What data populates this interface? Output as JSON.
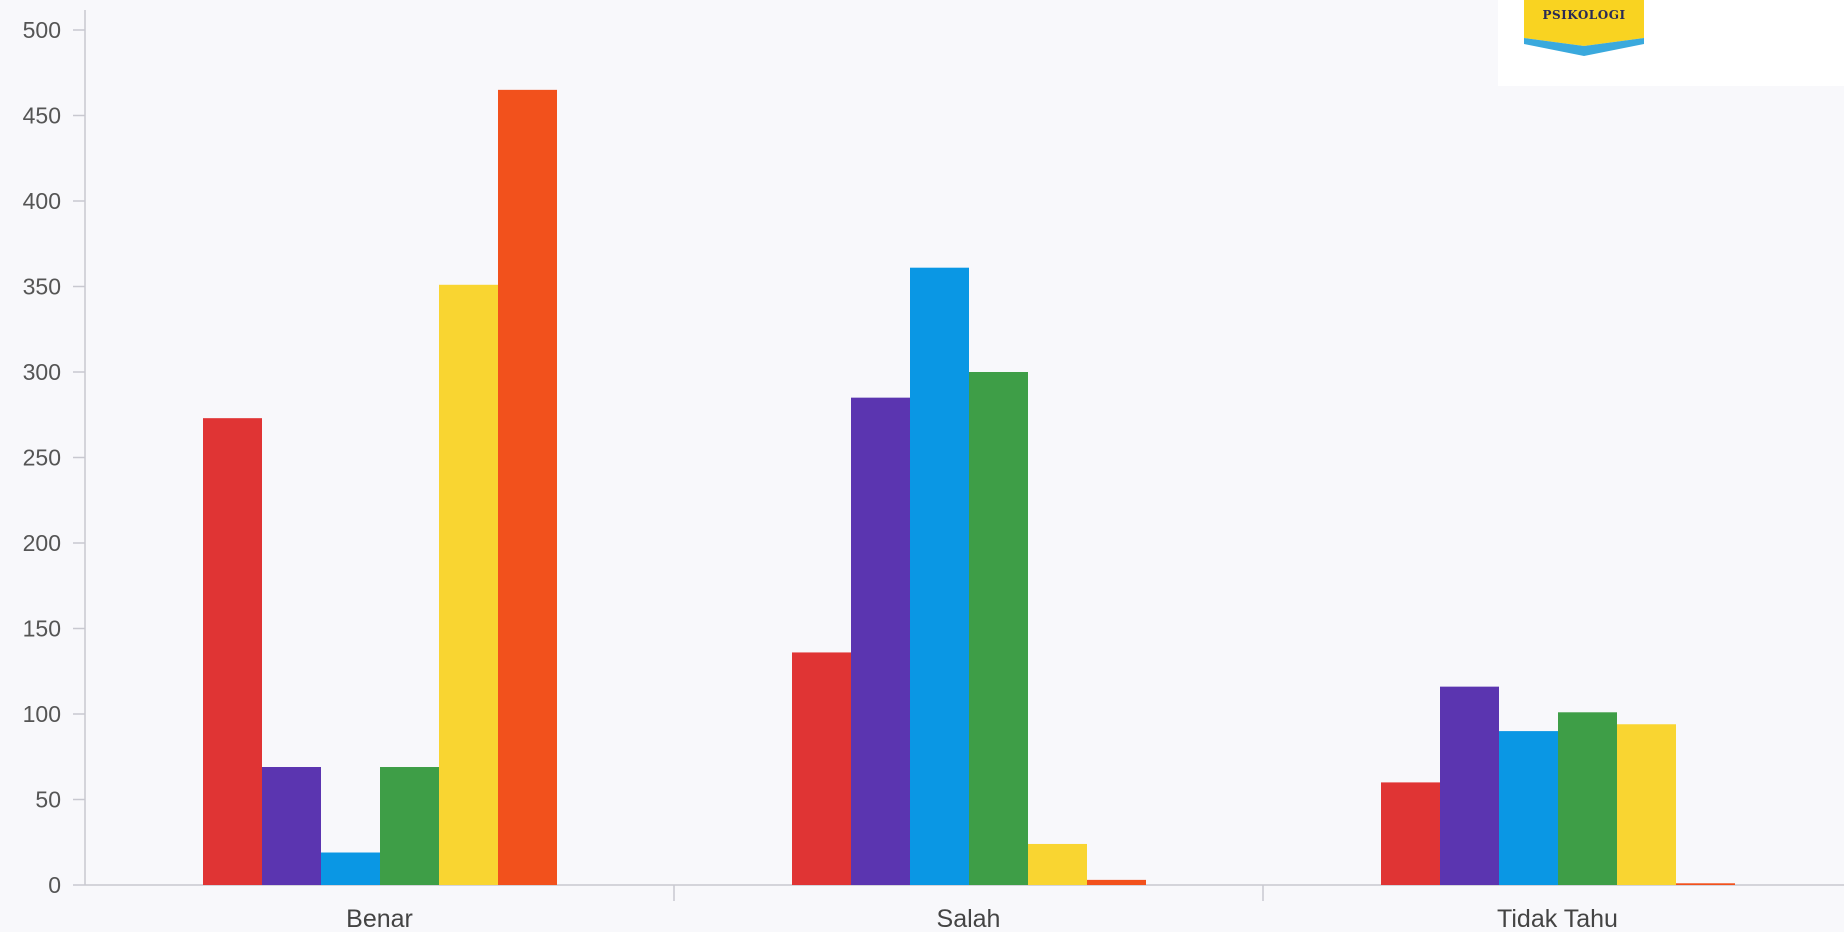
{
  "logo": {
    "text": "PSIKOLOGI"
  },
  "colors": {
    "background": "#f8f8fb",
    "axis": "#c8c8d0",
    "tick_text": "#555555",
    "logo_yellow": "#f9d321",
    "logo_blue": "#3aa9dd"
  },
  "chart_data": {
    "type": "bar",
    "title": "",
    "xlabel": "",
    "ylabel": "",
    "ylim": [
      0,
      500
    ],
    "yticks": [
      0,
      50,
      100,
      150,
      200,
      250,
      300,
      350,
      400,
      450,
      500
    ],
    "grid": false,
    "legend": "none",
    "categories": [
      "Benar",
      "Salah",
      "Tidak Tahu"
    ],
    "series": [
      {
        "color": "#e03434",
        "values": [
          273,
          136,
          60
        ]
      },
      {
        "color": "#5b35b0",
        "values": [
          69,
          285,
          116
        ]
      },
      {
        "color": "#0a97e4",
        "values": [
          19,
          361,
          90
        ]
      },
      {
        "color": "#3e9e47",
        "values": [
          69,
          300,
          101
        ]
      },
      {
        "color": "#f9d531",
        "values": [
          351,
          24,
          94
        ]
      },
      {
        "color": "#f2511c",
        "values": [
          465,
          3,
          1
        ]
      }
    ]
  }
}
